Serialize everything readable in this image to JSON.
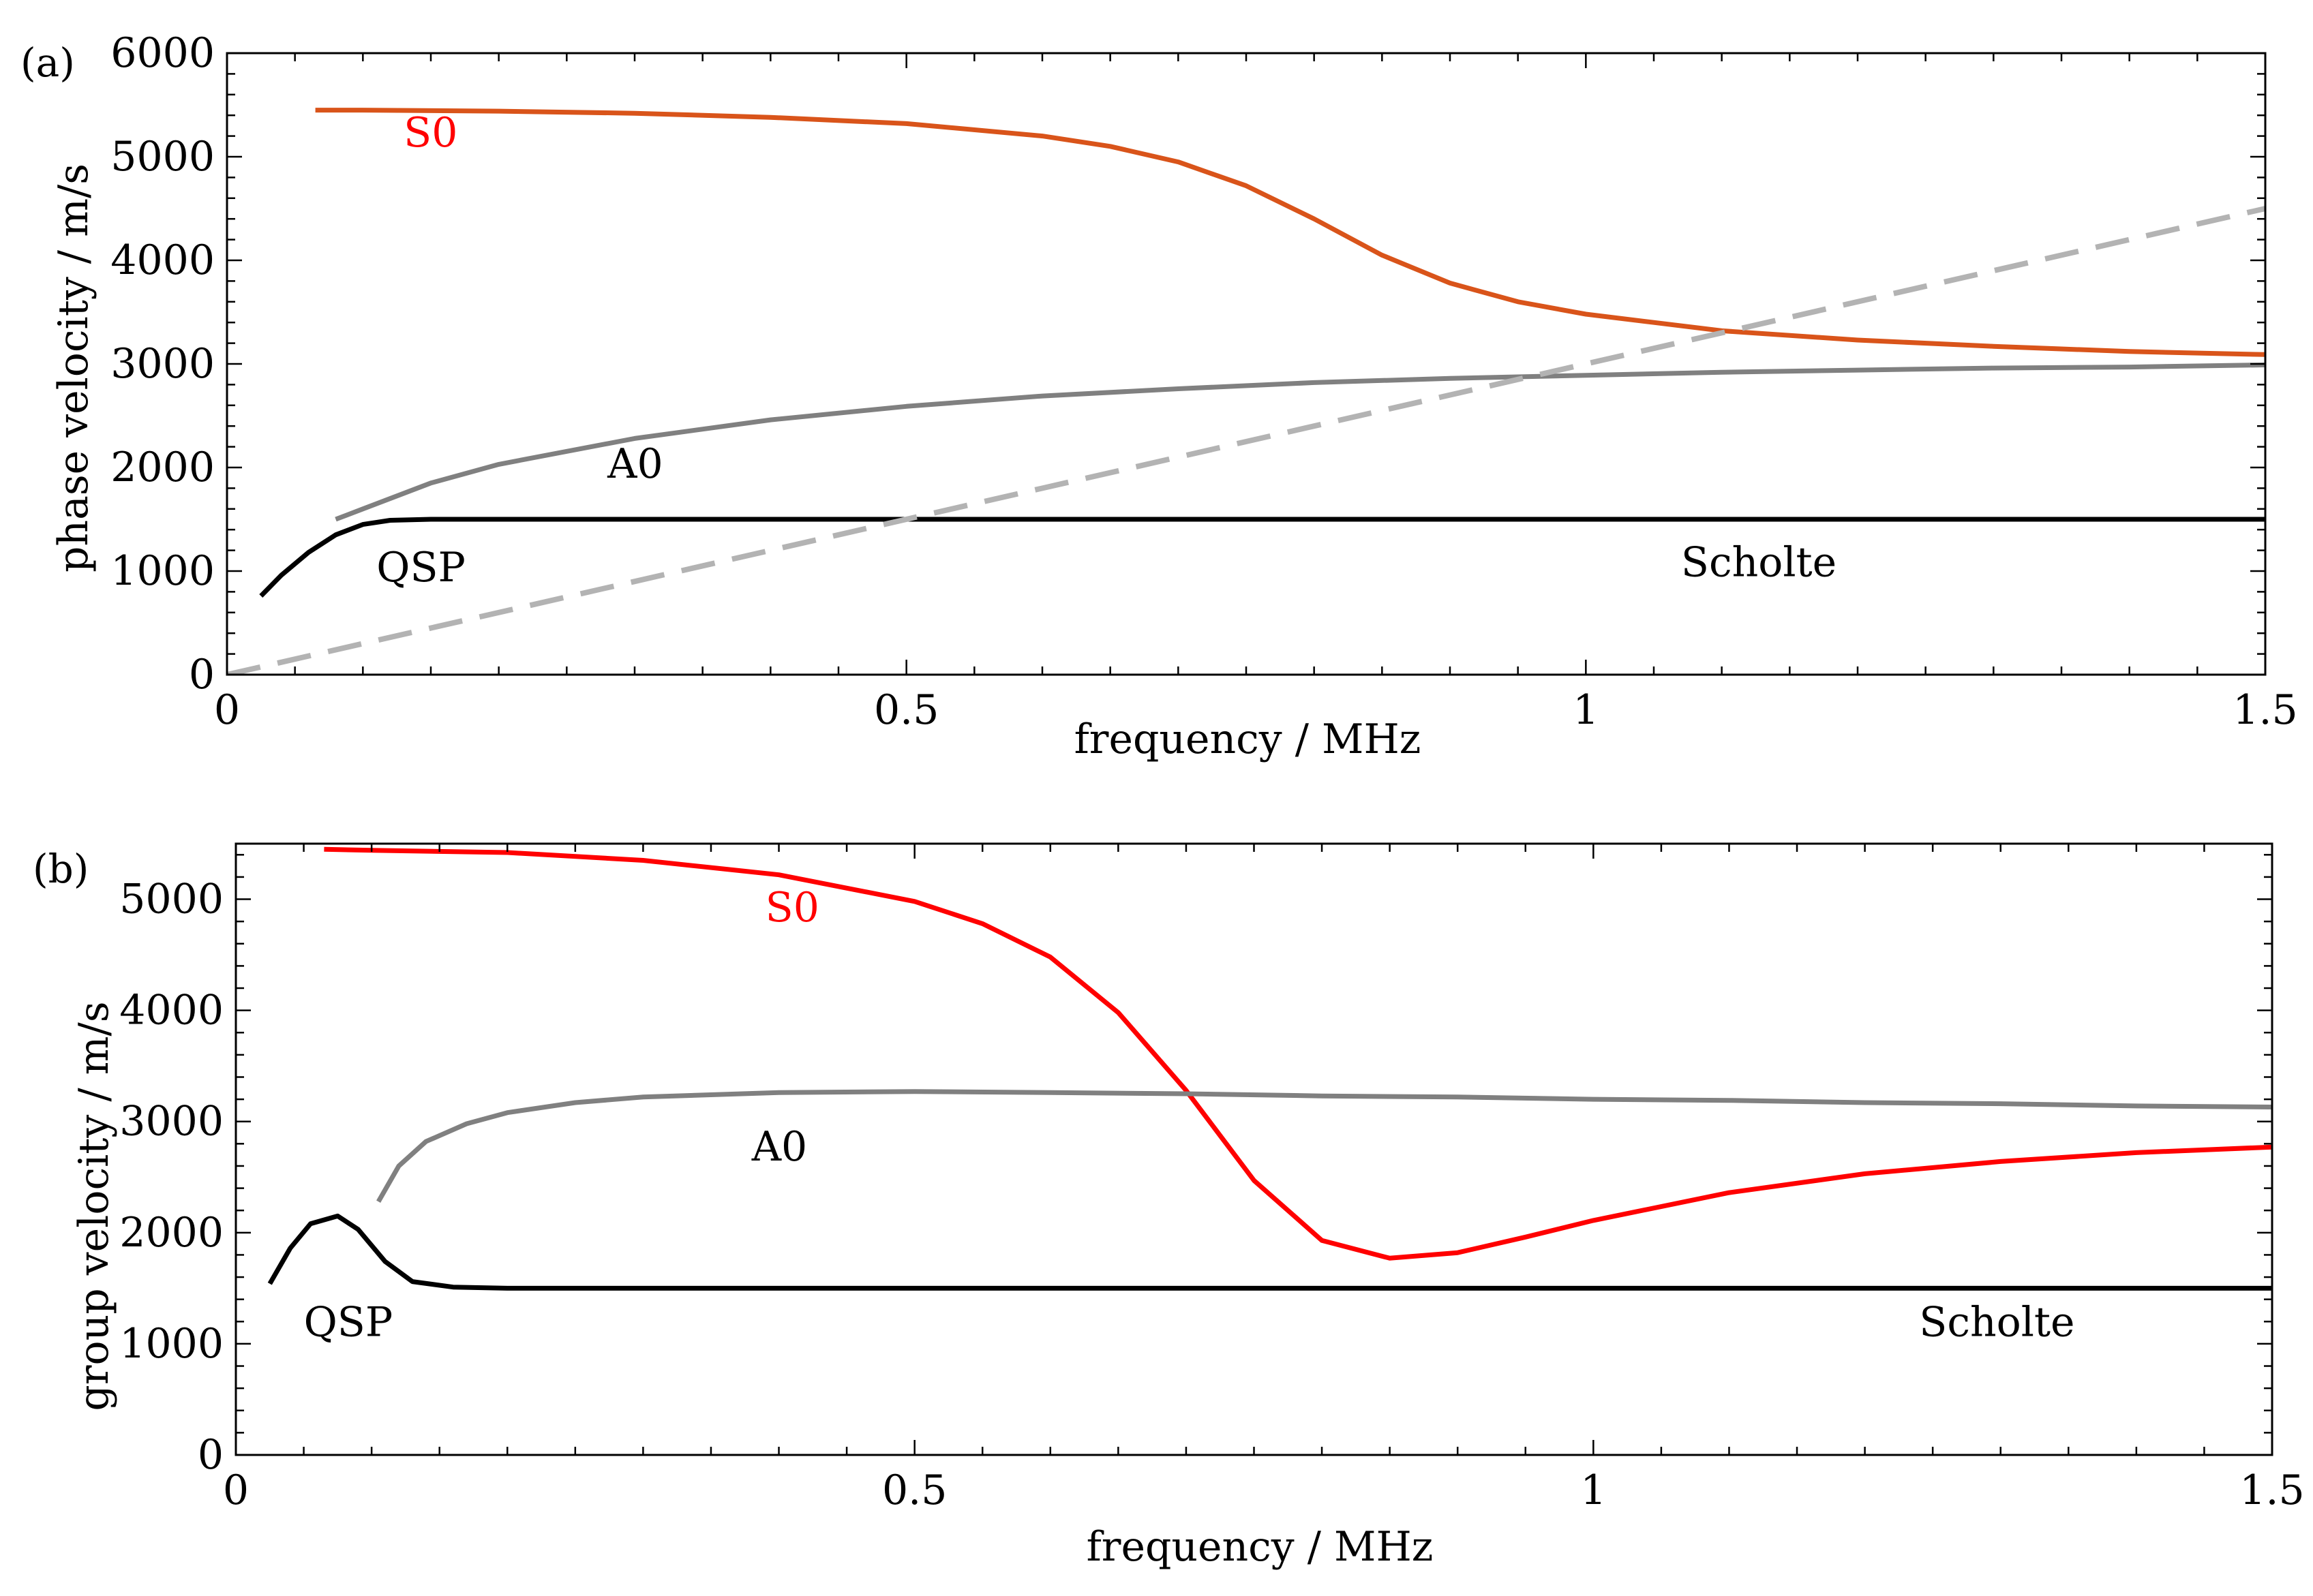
{
  "chart_data": [
    {
      "panel": "(a)",
      "type": "line",
      "title": "",
      "xlabel": "frequency / MHz",
      "ylabel": "phase velocity / m/s",
      "xlim": [
        0,
        1.5
      ],
      "ylim": [
        0,
        6000
      ],
      "x_ticks": [
        0,
        0.5,
        1,
        1.5
      ],
      "x_tick_labels": [
        "0",
        "0.5",
        "1",
        "1.5"
      ],
      "y_ticks": [
        0,
        1000,
        2000,
        3000,
        4000,
        5000,
        6000
      ],
      "y_tick_labels": [
        "0",
        "1000",
        "2000",
        "3000",
        "4000",
        "5000",
        "6000"
      ],
      "grid": false,
      "series": [
        {
          "name": "S0",
          "color": "#d9541a",
          "dash": "solid",
          "x": [
            0.065,
            0.1,
            0.2,
            0.3,
            0.4,
            0.5,
            0.6,
            0.65,
            0.7,
            0.75,
            0.8,
            0.85,
            0.9,
            0.95,
            1.0,
            1.05,
            1.1,
            1.2,
            1.3,
            1.4,
            1.5
          ],
          "y": [
            5450,
            5450,
            5440,
            5420,
            5380,
            5320,
            5200,
            5100,
            4950,
            4720,
            4400,
            4050,
            3780,
            3600,
            3480,
            3400,
            3320,
            3230,
            3170,
            3120,
            3090
          ]
        },
        {
          "name": "A0",
          "color": "#808080",
          "dash": "solid",
          "x": [
            0.08,
            0.1,
            0.15,
            0.2,
            0.3,
            0.4,
            0.5,
            0.6,
            0.7,
            0.8,
            0.9,
            1.0,
            1.1,
            1.2,
            1.3,
            1.4,
            1.5
          ],
          "y": [
            1500,
            1600,
            1850,
            2030,
            2280,
            2460,
            2590,
            2690,
            2760,
            2820,
            2860,
            2890,
            2920,
            2940,
            2960,
            2970,
            2990
          ]
        },
        {
          "name": "QSP / Scholte",
          "color": "#000000",
          "dash": "solid",
          "x": [
            0.025,
            0.04,
            0.06,
            0.08,
            0.1,
            0.12,
            0.15,
            0.2,
            0.3,
            0.5,
            0.75,
            1.0,
            1.25,
            1.5
          ],
          "y": [
            760,
            960,
            1180,
            1350,
            1450,
            1490,
            1500,
            1500,
            1500,
            1500,
            1500,
            1500,
            1500,
            1500
          ]
        },
        {
          "name": "reference line",
          "color": "#b3b3b3",
          "dash": "dashed",
          "x": [
            0,
            1.5
          ],
          "y": [
            0,
            4500
          ]
        }
      ],
      "annotations": [
        {
          "text": "S0",
          "x": 0.13,
          "y": 5100,
          "color": "#ff0000"
        },
        {
          "text": "A0",
          "x": 0.28,
          "y": 1900,
          "color": "#000000"
        },
        {
          "text": "QSP",
          "x": 0.11,
          "y": 900,
          "color": "#000000"
        },
        {
          "text": "Scholte",
          "x": 1.07,
          "y": 950,
          "color": "#000000"
        }
      ]
    },
    {
      "panel": "(b)",
      "type": "line",
      "title": "",
      "xlabel": "frequency / MHz",
      "ylabel": "group velocity / m/s",
      "xlim": [
        0,
        1.5
      ],
      "ylim": [
        0,
        5500
      ],
      "x_ticks": [
        0,
        0.5,
        1,
        1.5
      ],
      "x_tick_labels": [
        "0",
        "0.5",
        "1",
        "1.5"
      ],
      "y_ticks": [
        0,
        1000,
        2000,
        3000,
        4000,
        5000
      ],
      "y_tick_labels": [
        "0",
        "1000",
        "2000",
        "3000",
        "4000",
        "5000"
      ],
      "grid": false,
      "series": [
        {
          "name": "S0",
          "color": "#ff0000",
          "dash": "solid",
          "x": [
            0.065,
            0.1,
            0.2,
            0.3,
            0.4,
            0.5,
            0.55,
            0.6,
            0.65,
            0.7,
            0.75,
            0.8,
            0.85,
            0.9,
            0.95,
            1.0,
            1.1,
            1.2,
            1.3,
            1.4,
            1.5
          ],
          "y": [
            5450,
            5440,
            5420,
            5350,
            5220,
            4980,
            4780,
            4480,
            3980,
            3280,
            2470,
            1930,
            1770,
            1820,
            1960,
            2110,
            2360,
            2530,
            2640,
            2720,
            2770
          ]
        },
        {
          "name": "A0",
          "color": "#808080",
          "dash": "solid",
          "x": [
            0.105,
            0.12,
            0.14,
            0.17,
            0.2,
            0.25,
            0.3,
            0.4,
            0.5,
            0.6,
            0.7,
            0.8,
            0.9,
            1.0,
            1.1,
            1.2,
            1.3,
            1.4,
            1.5
          ],
          "y": [
            2280,
            2600,
            2820,
            2980,
            3080,
            3170,
            3220,
            3260,
            3270,
            3260,
            3250,
            3230,
            3220,
            3200,
            3190,
            3170,
            3160,
            3140,
            3130
          ]
        },
        {
          "name": "QSP / Scholte",
          "color": "#000000",
          "dash": "solid",
          "x": [
            0.025,
            0.04,
            0.055,
            0.075,
            0.09,
            0.11,
            0.13,
            0.16,
            0.2,
            0.3,
            0.5,
            0.75,
            1.0,
            1.25,
            1.5
          ],
          "y": [
            1540,
            1860,
            2080,
            2150,
            2030,
            1740,
            1560,
            1510,
            1500,
            1500,
            1500,
            1500,
            1500,
            1500,
            1500
          ]
        }
      ],
      "annotations": [
        {
          "text": "S0",
          "x": 0.39,
          "y": 4800,
          "color": "#ff0000"
        },
        {
          "text": "A0",
          "x": 0.38,
          "y": 2650,
          "color": "#000000"
        },
        {
          "text": "QSP",
          "x": 0.05,
          "y": 1070,
          "color": "#000000"
        },
        {
          "text": "Scholte",
          "x": 1.24,
          "y": 1070,
          "color": "#000000"
        }
      ]
    }
  ]
}
